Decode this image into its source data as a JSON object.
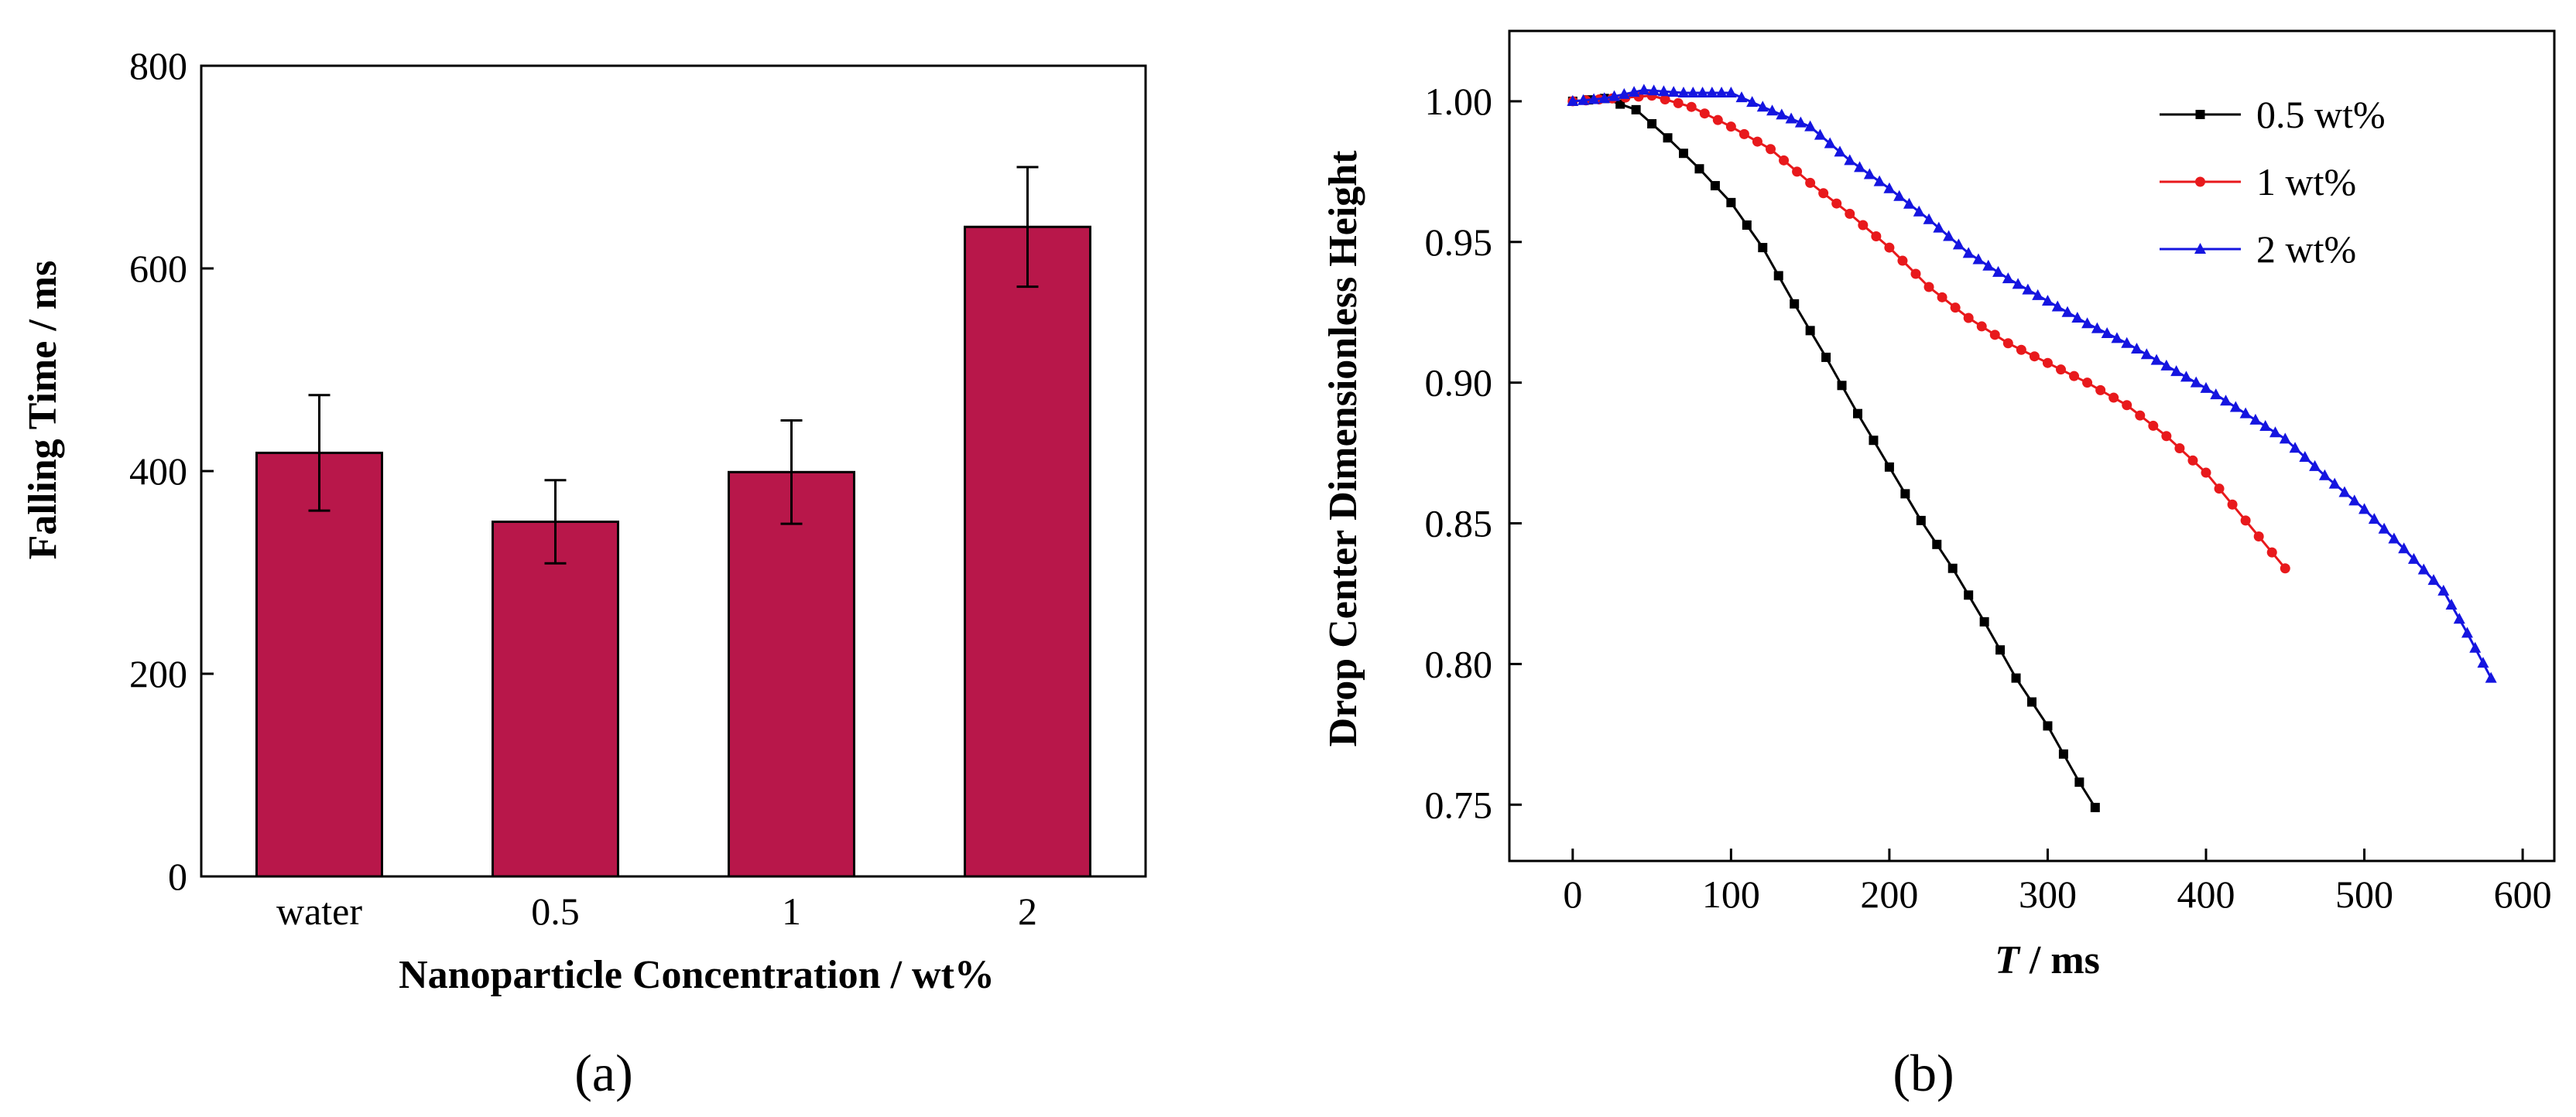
{
  "chart_data": [
    {
      "type": "bar",
      "panel_label": "(a)",
      "title": "",
      "xlabel": "Nanoparticle Concentration  / wt%",
      "ylabel": "Falling Time  / ms",
      "categories": [
        "water",
        "0.5",
        "1",
        "2"
      ],
      "values": [
        418,
        350,
        399,
        641
      ],
      "errors": [
        57,
        41,
        51,
        59
      ],
      "ylim": [
        0,
        800
      ],
      "yticks": [
        0,
        200,
        400,
        600,
        800
      ],
      "bar_color": "#B8174A",
      "grid": false
    },
    {
      "type": "line",
      "panel_label": "(b)",
      "title": "",
      "xlabel_italic": "T",
      "xlabel_rest": " / ms",
      "ylabel": "Drop Center Dimensionless Height",
      "xlim": [
        -40,
        620
      ],
      "ylim": [
        0.73,
        1.025
      ],
      "xticks": [
        0,
        100,
        200,
        300,
        400,
        500,
        600
      ],
      "yticks": [
        "0.75",
        "0.80",
        "0.85",
        "0.90",
        "0.95",
        "1.00"
      ],
      "legend_position": "top-right",
      "grid": false,
      "series": [
        {
          "name": "0.5 wt%",
          "color": "#000000",
          "marker": "square",
          "x": [
            0,
            20,
            40,
            60,
            80,
            100,
            120,
            140,
            160,
            180,
            200,
            220,
            240,
            260,
            280,
            300,
            320,
            330
          ],
          "y": [
            1.0,
            1.001,
            0.997,
            0.987,
            0.976,
            0.964,
            0.948,
            0.928,
            0.909,
            0.889,
            0.87,
            0.851,
            0.834,
            0.815,
            0.795,
            0.778,
            0.758,
            0.749
          ]
        },
        {
          "name": "1 wt%",
          "color": "#E8191C",
          "marker": "circle",
          "x": [
            0,
            25,
            50,
            75,
            100,
            125,
            150,
            175,
            200,
            225,
            250,
            275,
            300,
            325,
            350,
            375,
            400,
            425,
            450
          ],
          "y": [
            1.0,
            1.001,
            1.002,
            0.998,
            0.991,
            0.983,
            0.971,
            0.96,
            0.948,
            0.934,
            0.923,
            0.914,
            0.907,
            0.9,
            0.892,
            0.881,
            0.868,
            0.851,
            0.834
          ]
        },
        {
          "name": "2 wt%",
          "color": "#1515E0",
          "marker": "triangle",
          "x": [
            0,
            20,
            45,
            70,
            100,
            120,
            150,
            175,
            200,
            225,
            250,
            275,
            300,
            325,
            350,
            375,
            400,
            425,
            450,
            475,
            500,
            525,
            550,
            565,
            580
          ],
          "y": [
            1.0,
            1.001,
            1.004,
            1.003,
            1.003,
            0.998,
            0.991,
            0.979,
            0.969,
            0.958,
            0.946,
            0.937,
            0.929,
            0.921,
            0.914,
            0.906,
            0.898,
            0.889,
            0.88,
            0.867,
            0.855,
            0.841,
            0.826,
            0.811,
            0.795
          ]
        }
      ]
    }
  ]
}
